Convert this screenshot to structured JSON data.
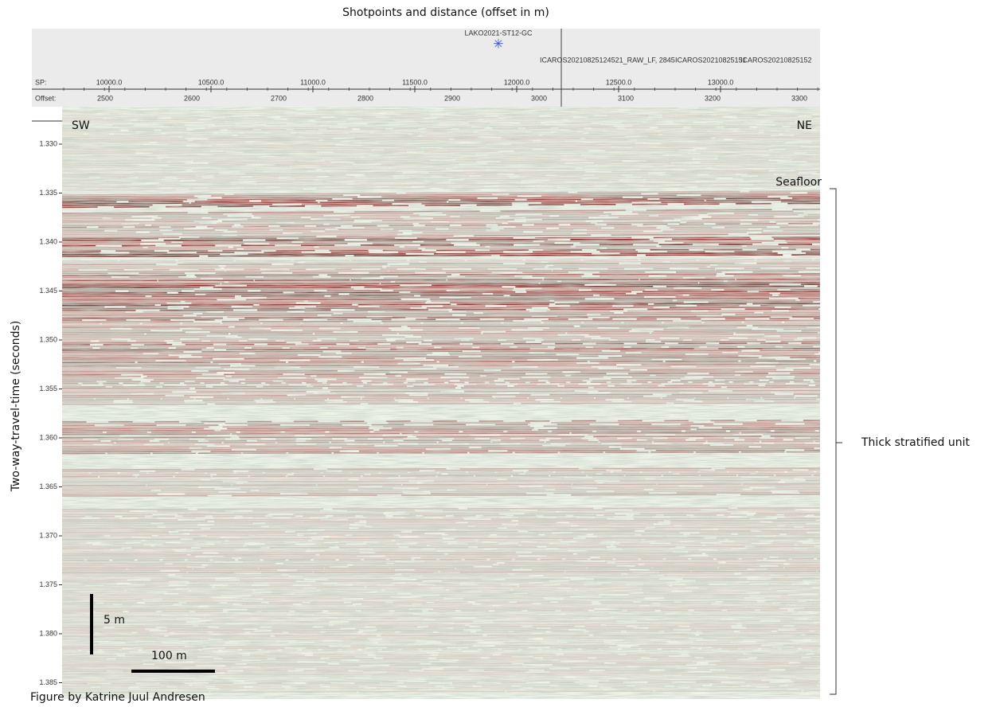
{
  "header": {
    "title": "Shotpoints and distance (offset in m)",
    "marker_label": "LAKO2021-ST12-GC",
    "trace_labels": [
      "ICAROS20210825124521_RAW_LF, 2845",
      "ICAROS20210825151",
      "ICAROS20210825152"
    ]
  },
  "sp_axis": {
    "label": "SP:",
    "ticks": [
      "10000.0",
      "10500.0",
      "11000.0",
      "11500.0",
      "12000.0",
      "12500.0",
      "13000.0"
    ]
  },
  "offset_axis": {
    "label": "Offset:",
    "ticks": [
      "2500",
      "2600",
      "2700",
      "2800",
      "2900",
      "3000",
      "3100",
      "3200",
      "3300"
    ]
  },
  "y_axis": {
    "label": "Two-way-travel-time (seconds)",
    "ticks": [
      "1.330",
      "1.335",
      "1.340",
      "1.345",
      "1.350",
      "1.355",
      "1.360",
      "1.365",
      "1.370",
      "1.375",
      "1.380",
      "1.385"
    ]
  },
  "annotations": {
    "left": "SW",
    "right": "NE",
    "seafloor": "Seafloor",
    "unit": "Thick stratified unit",
    "vertical_scale": "5 m",
    "horizontal_scale": "100 m",
    "credit": "Figure by Katrine Juul Andresen"
  }
}
